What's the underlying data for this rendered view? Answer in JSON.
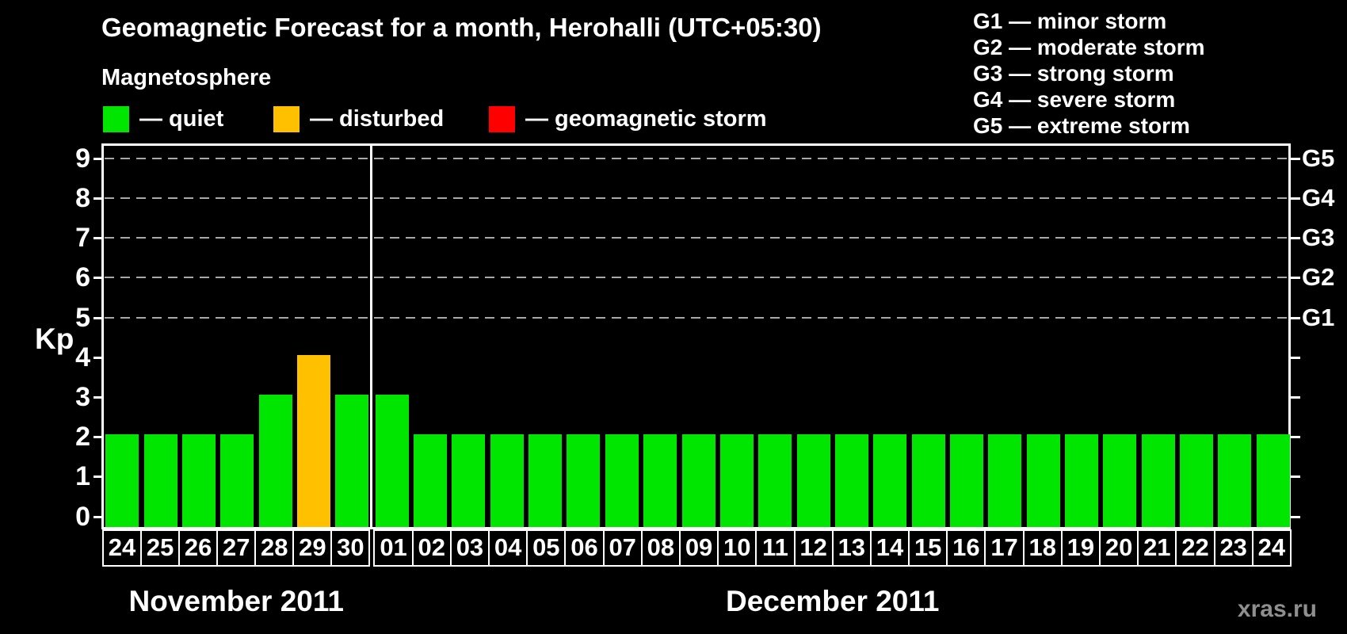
{
  "title": "Geomagnetic Forecast for a month, Herohalli (UTC+05:30)",
  "legend": {
    "heading": "Magnetosphere",
    "items": [
      {
        "key": "quiet",
        "label": "— quiet"
      },
      {
        "key": "disturbed",
        "label": "— disturbed"
      },
      {
        "key": "storm",
        "label": "— geomagnetic storm"
      }
    ]
  },
  "g_scale_legend": [
    "G1 — minor storm",
    "G2 — moderate storm",
    "G3 — strong storm",
    "G4 — severe storm",
    "G5 — extreme storm"
  ],
  "colors": {
    "quiet": "#00e600",
    "disturbed": "#ffc000",
    "storm": "#ff0000",
    "grid": "#a9a9a9",
    "axis": "#ffffff",
    "watermark": "#8f8f8f"
  },
  "watermark": "xras.ru",
  "chart_data": {
    "type": "bar",
    "ylabel": "Kp",
    "ylim": [
      -0.33,
      9.4
    ],
    "yticks": [
      0,
      1,
      2,
      3,
      4,
      5,
      6,
      7,
      8,
      9
    ],
    "gridline_levels": [
      5,
      6,
      7,
      8,
      9
    ],
    "grid": "dashed horizontal at G-storm levels only",
    "legend_position": "top",
    "right_axis_labels": [
      {
        "kp": 9,
        "label": "G5"
      },
      {
        "kp": 8,
        "label": "G4"
      },
      {
        "kp": 7,
        "label": "G3"
      },
      {
        "kp": 6,
        "label": "G2"
      },
      {
        "kp": 5,
        "label": "G1"
      }
    ],
    "months": [
      {
        "label": "November 2011",
        "days": [
          {
            "day": "24",
            "kp": 2,
            "state": "quiet"
          },
          {
            "day": "25",
            "kp": 2,
            "state": "quiet"
          },
          {
            "day": "26",
            "kp": 2,
            "state": "quiet"
          },
          {
            "day": "27",
            "kp": 2,
            "state": "quiet"
          },
          {
            "day": "28",
            "kp": 3,
            "state": "quiet"
          },
          {
            "day": "29",
            "kp": 4,
            "state": "disturbed"
          },
          {
            "day": "30",
            "kp": 3,
            "state": "quiet"
          }
        ]
      },
      {
        "label": "December 2011",
        "days": [
          {
            "day": "01",
            "kp": 3,
            "state": "quiet"
          },
          {
            "day": "02",
            "kp": 2,
            "state": "quiet"
          },
          {
            "day": "03",
            "kp": 2,
            "state": "quiet"
          },
          {
            "day": "04",
            "kp": 2,
            "state": "quiet"
          },
          {
            "day": "05",
            "kp": 2,
            "state": "quiet"
          },
          {
            "day": "06",
            "kp": 2,
            "state": "quiet"
          },
          {
            "day": "07",
            "kp": 2,
            "state": "quiet"
          },
          {
            "day": "08",
            "kp": 2,
            "state": "quiet"
          },
          {
            "day": "09",
            "kp": 2,
            "state": "quiet"
          },
          {
            "day": "10",
            "kp": 2,
            "state": "quiet"
          },
          {
            "day": "11",
            "kp": 2,
            "state": "quiet"
          },
          {
            "day": "12",
            "kp": 2,
            "state": "quiet"
          },
          {
            "day": "13",
            "kp": 2,
            "state": "quiet"
          },
          {
            "day": "14",
            "kp": 2,
            "state": "quiet"
          },
          {
            "day": "15",
            "kp": 2,
            "state": "quiet"
          },
          {
            "day": "16",
            "kp": 2,
            "state": "quiet"
          },
          {
            "day": "17",
            "kp": 2,
            "state": "quiet"
          },
          {
            "day": "18",
            "kp": 2,
            "state": "quiet"
          },
          {
            "day": "19",
            "kp": 2,
            "state": "quiet"
          },
          {
            "day": "20",
            "kp": 2,
            "state": "quiet"
          },
          {
            "day": "21",
            "kp": 2,
            "state": "quiet"
          },
          {
            "day": "22",
            "kp": 2,
            "state": "quiet"
          },
          {
            "day": "23",
            "kp": 2,
            "state": "quiet"
          },
          {
            "day": "24",
            "kp": 2,
            "state": "quiet"
          }
        ]
      }
    ]
  }
}
